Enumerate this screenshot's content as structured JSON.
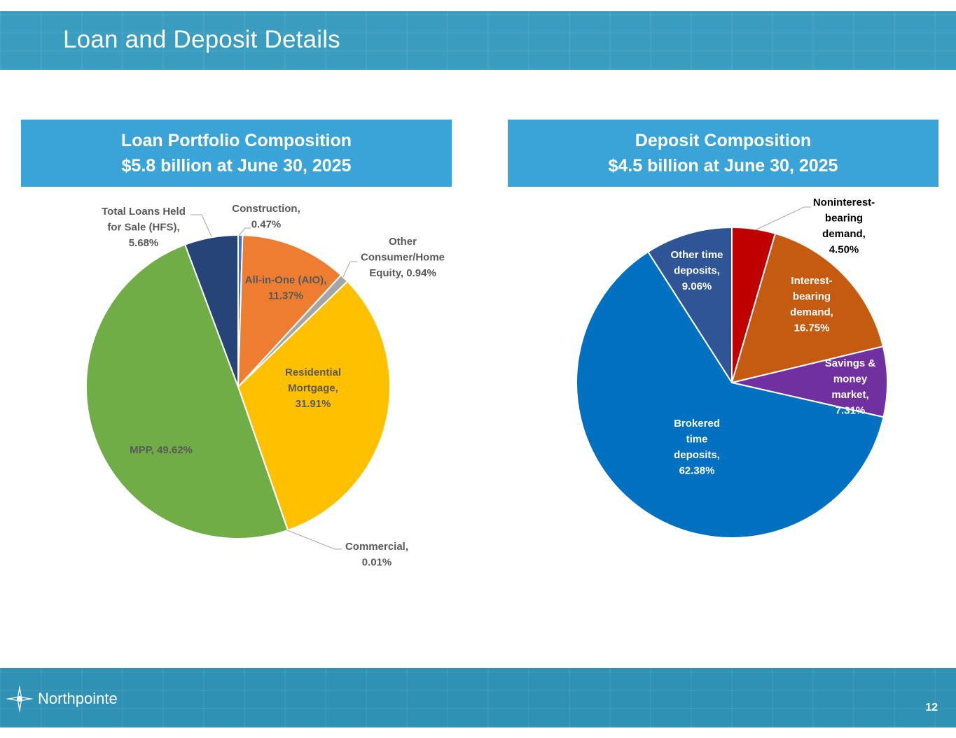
{
  "slide": {
    "title": "Loan and Deposit Details",
    "page_number": "12",
    "logo_text": "Northpointe"
  },
  "colors": {
    "band": "#3a9cbf",
    "header": "#3aa3d8"
  },
  "panels": {
    "loans": {
      "title": "Loan Portfolio Composition",
      "subtitle": "$5.8 billion at June 30, 2025"
    },
    "deposits": {
      "title": "Deposit Composition",
      "subtitle": "$4.5 billion at June 30, 2025"
    }
  },
  "chart_data": [
    {
      "type": "pie",
      "title": "Loan Portfolio Composition",
      "subtitle": "$5.8 billion at June 30, 2025",
      "slices": [
        {
          "name": "Construction",
          "value": 0.47,
          "color": "#4472c4",
          "label_lines": [
            "Construction,",
            "0.47%"
          ],
          "label_color": "#595959"
        },
        {
          "name": "All-in-One (AIO)",
          "value": 11.37,
          "color": "#ed7d31",
          "label_lines": [
            "All-in-One (AIO),",
            "11.37%"
          ],
          "label_color": "#595959"
        },
        {
          "name": "Other Consumer/Home Equity",
          "value": 0.94,
          "color": "#a5a5a5",
          "label_lines": [
            "Other",
            "Consumer/Home",
            "Equity, 0.94%"
          ],
          "label_color": "#595959"
        },
        {
          "name": "Residential Mortgage",
          "value": 31.91,
          "color": "#ffc000",
          "label_lines": [
            "Residential",
            "Mortgage,",
            "31.91%"
          ],
          "label_color": "#595959"
        },
        {
          "name": "Commercial",
          "value": 0.01,
          "color": "#5b9bd5",
          "label_lines": [
            "Commercial,",
            "0.01%"
          ],
          "label_color": "#595959"
        },
        {
          "name": "MPP",
          "value": 49.62,
          "color": "#70ad47",
          "label_lines": [
            "MPP, 49.62%"
          ],
          "label_color": "#595959"
        },
        {
          "name": "Total Loans Held for Sale (HFS)",
          "value": 5.68,
          "color": "#264478",
          "label_lines": [
            "Total Loans Held",
            "for Sale (HFS),",
            "5.68%"
          ],
          "label_color": "#595959"
        }
      ]
    },
    {
      "type": "pie",
      "title": "Deposit Composition",
      "subtitle": "$4.5 billion at June 30, 2025",
      "slices": [
        {
          "name": "Noninterest-bearing demand",
          "value": 4.5,
          "color": "#c00000",
          "label_lines": [
            "Noninterest-",
            "bearing",
            "demand,",
            "4.50%"
          ],
          "label_color": "#000000"
        },
        {
          "name": "Interest-bearing demand",
          "value": 16.75,
          "color": "#c55a11",
          "label_lines": [
            "Interest-",
            "bearing",
            "demand,",
            "16.75%"
          ],
          "label_color": "#ffffff"
        },
        {
          "name": "Savings & money market",
          "value": 7.31,
          "color": "#7030a0",
          "label_lines": [
            "Savings &",
            "money",
            "market,",
            "7.31%"
          ],
          "label_color": "#ffffff"
        },
        {
          "name": "Brokered time deposits",
          "value": 62.38,
          "color": "#0070c0",
          "label_lines": [
            "Brokered",
            "time",
            "deposits,",
            "62.38%"
          ],
          "label_color": "#ffffff"
        },
        {
          "name": "Other time deposits",
          "value": 9.06,
          "color": "#2f5597",
          "label_lines": [
            "Other time",
            "deposits,",
            "9.06%"
          ],
          "label_color": "#ffffff"
        }
      ]
    }
  ]
}
